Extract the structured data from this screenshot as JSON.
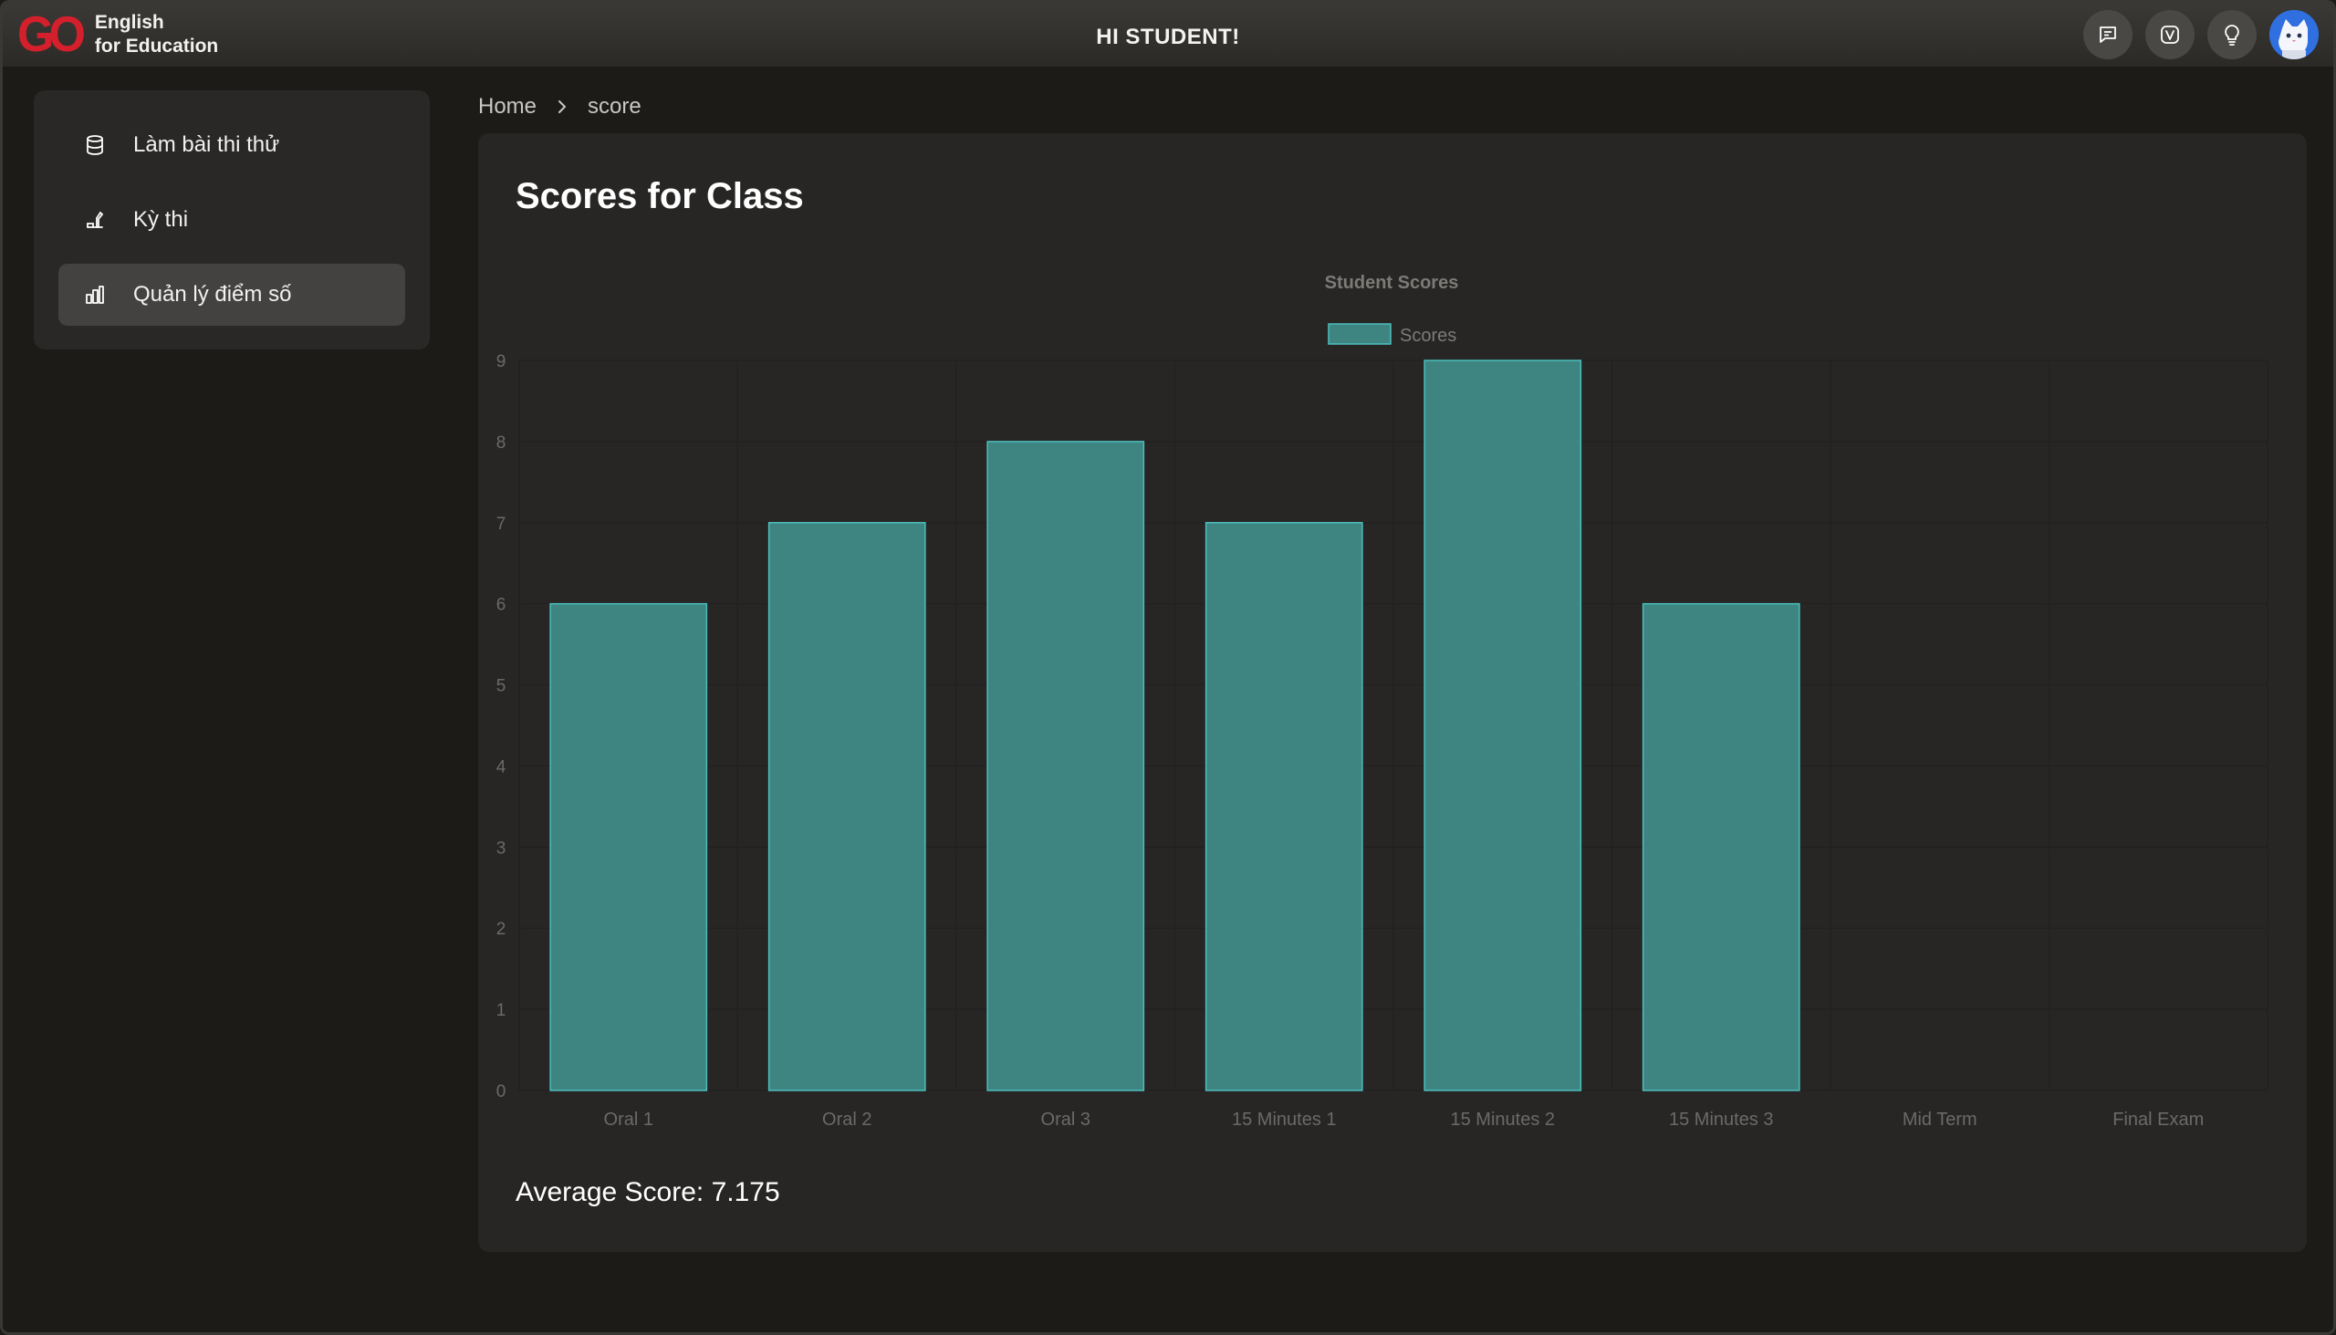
{
  "header": {
    "logo_mark": "GO",
    "logo_line1": "English",
    "logo_line2": "for Education",
    "greeting": "HI STUDENT!"
  },
  "icons": {
    "chat": "chat-bubble-icon",
    "v": "v-badge-icon",
    "bulb": "lightbulb-icon",
    "avatar": "cat-avatar"
  },
  "sidebar": {
    "items": [
      {
        "label": "Làm bài thi thử",
        "icon": "database-icon"
      },
      {
        "label": "Kỳ thi",
        "icon": "exam-icon"
      },
      {
        "label": "Quản lý điểm số",
        "icon": "bar-chart-icon"
      }
    ],
    "active_index": 2
  },
  "breadcrumb": {
    "home": "Home",
    "current": "score"
  },
  "main": {
    "title": "Scores for Class",
    "average_label": "Average Score:",
    "average_value": "7.175"
  },
  "colors": {
    "bar_fill": "#3e8581",
    "bar_border": "#4bbfbd",
    "accent_red": "#d4202c"
  },
  "chart_data": {
    "type": "bar",
    "title": "Student Scores",
    "legend": [
      "Scores"
    ],
    "legend_position": "top",
    "categories": [
      "Oral 1",
      "Oral 2",
      "Oral 3",
      "15 Minutes 1",
      "15 Minutes 2",
      "15 Minutes 3",
      "Mid Term",
      "Final Exam"
    ],
    "series": [
      {
        "name": "Scores",
        "values": [
          6,
          7,
          8,
          7,
          9,
          6,
          null,
          null
        ]
      }
    ],
    "ylim": [
      0,
      9
    ],
    "yticks": [
      0,
      1,
      2,
      3,
      4,
      5,
      6,
      7,
      8,
      9
    ],
    "grid": true
  }
}
